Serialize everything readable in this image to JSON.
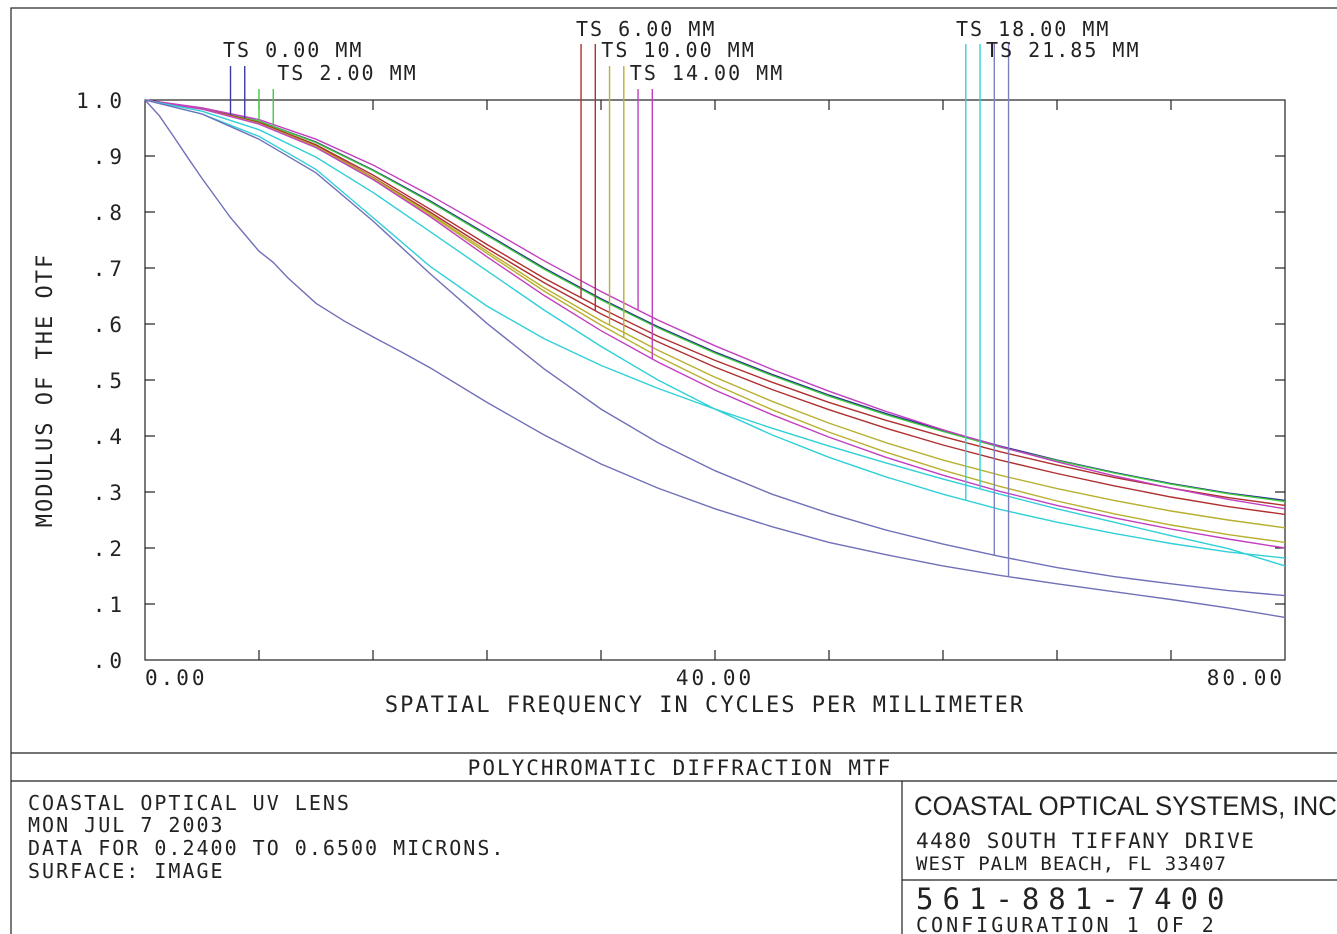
{
  "chart_data": {
    "type": "line",
    "title": "POLYCHROMATIC DIFFRACTION MTF",
    "xlabel": "SPATIAL FREQUENCY IN CYCLES PER MILLIMETER",
    "ylabel": "MODULUS OF THE OTF",
    "xlim": [
      0,
      80
    ],
    "ylim": [
      0,
      1
    ],
    "x_ticks": [
      0,
      8,
      16,
      24,
      32,
      40,
      48,
      56,
      64,
      72,
      80
    ],
    "x_tick_labels": [
      {
        "value": 0,
        "label": "0.00"
      },
      {
        "value": 40,
        "label": "40.00"
      },
      {
        "value": 80,
        "label": "80.00"
      }
    ],
    "y_ticks": [
      {
        "value": 1.0,
        "label": "1.0"
      },
      {
        "value": 0.9,
        "label": ".9"
      },
      {
        "value": 0.8,
        "label": ".8"
      },
      {
        "value": 0.7,
        "label": ".7"
      },
      {
        "value": 0.6,
        "label": ".6"
      },
      {
        "value": 0.5,
        "label": ".5"
      },
      {
        "value": 0.4,
        "label": ".4"
      },
      {
        "value": 0.3,
        "label": ".3"
      },
      {
        "value": 0.2,
        "label": ".2"
      },
      {
        "value": 0.1,
        "label": ".1"
      },
      {
        "value": 0.0,
        "label": ".0"
      }
    ],
    "grid": false,
    "field_labels": [
      {
        "text": "TS 0.00 MM",
        "color": "#3a3aa8",
        "markers_x": [
          6.0,
          7.0
        ]
      },
      {
        "text": "TS 2.00 MM",
        "color": "#3fcc3f",
        "markers_x": [
          8.0,
          9.0
        ]
      },
      {
        "text": "TS 6.00 MM",
        "color": "#b03030",
        "markers_x": [
          30.6,
          31.6
        ]
      },
      {
        "text": "TS 10.00 MM",
        "color": "#b8b030",
        "markers_x": [
          32.6,
          33.6
        ]
      },
      {
        "text": "TS 14.00 MM",
        "color": "#c040c0",
        "markers_x": [
          34.6,
          35.6
        ]
      },
      {
        "text": "TS 18.00 MM",
        "color": "#30d0d8",
        "markers_x": [
          57.6,
          58.6
        ]
      },
      {
        "text": "TS 21.85 MM",
        "color": "#8080c0",
        "markers_x": [
          59.6,
          60.6
        ]
      }
    ],
    "series": [
      {
        "color": "#2a2a90",
        "x": [
          0,
          4,
          8,
          12,
          16,
          20,
          24,
          28,
          32,
          36,
          40,
          44,
          48,
          52,
          56,
          60,
          64,
          68,
          72,
          76,
          80
        ],
        "y": [
          1.0,
          0.985,
          0.962,
          0.925,
          0.875,
          0.82,
          0.76,
          0.7,
          0.645,
          0.595,
          0.55,
          0.51,
          0.473,
          0.44,
          0.41,
          0.382,
          0.357,
          0.335,
          0.315,
          0.298,
          0.285
        ]
      },
      {
        "color": "#3fcc3f",
        "x": [
          0,
          4,
          8,
          12,
          16,
          20,
          24,
          28,
          32,
          36,
          40,
          44,
          48,
          52,
          56,
          60,
          64,
          68,
          72,
          76,
          80
        ],
        "y": [
          1.0,
          0.985,
          0.962,
          0.924,
          0.874,
          0.818,
          0.758,
          0.698,
          0.643,
          0.593,
          0.548,
          0.508,
          0.471,
          0.438,
          0.408,
          0.38,
          0.356,
          0.334,
          0.314,
          0.297,
          0.283
        ]
      },
      {
        "color": "#b03030",
        "x": [
          0,
          4,
          8,
          12,
          16,
          20,
          24,
          28,
          32,
          36,
          40,
          44,
          48,
          52,
          56,
          60,
          64,
          68,
          72,
          76,
          80
        ],
        "y": [
          1.0,
          0.985,
          0.96,
          0.92,
          0.866,
          0.805,
          0.742,
          0.682,
          0.628,
          0.578,
          0.535,
          0.496,
          0.46,
          0.428,
          0.399,
          0.372,
          0.348,
          0.326,
          0.307,
          0.29,
          0.276
        ]
      },
      {
        "color": "#b03030",
        "x": [
          0,
          4,
          8,
          12,
          16,
          20,
          24,
          28,
          32,
          36,
          40,
          44,
          48,
          52,
          56,
          60,
          64,
          68,
          72,
          76,
          80
        ],
        "y": [
          1.0,
          0.984,
          0.958,
          0.918,
          0.862,
          0.8,
          0.735,
          0.674,
          0.618,
          0.568,
          0.523,
          0.483,
          0.447,
          0.414,
          0.384,
          0.357,
          0.333,
          0.311,
          0.291,
          0.274,
          0.26
        ]
      },
      {
        "color": "#b8b030",
        "x": [
          0,
          4,
          8,
          12,
          16,
          20,
          24,
          28,
          32,
          36,
          40,
          44,
          48,
          52,
          56,
          60,
          64,
          68,
          72,
          76,
          80
        ],
        "y": [
          1.0,
          0.984,
          0.958,
          0.917,
          0.861,
          0.797,
          0.73,
          0.665,
          0.606,
          0.553,
          0.505,
          0.462,
          0.423,
          0.388,
          0.357,
          0.33,
          0.306,
          0.285,
          0.266,
          0.25,
          0.236
        ]
      },
      {
        "color": "#b8b030",
        "x": [
          0,
          4,
          8,
          12,
          16,
          20,
          24,
          28,
          32,
          36,
          40,
          44,
          48,
          52,
          56,
          60,
          64,
          68,
          72,
          76,
          80
        ],
        "y": [
          1.0,
          0.984,
          0.958,
          0.917,
          0.86,
          0.795,
          0.726,
          0.659,
          0.598,
          0.542,
          0.492,
          0.447,
          0.407,
          0.371,
          0.339,
          0.31,
          0.284,
          0.261,
          0.241,
          0.224,
          0.21
        ]
      },
      {
        "color": "#c040c0",
        "x": [
          0,
          4,
          8,
          12,
          16,
          20,
          24,
          28,
          32,
          36,
          40,
          44,
          48,
          52,
          56,
          60,
          64,
          68,
          72,
          76,
          80
        ],
        "y": [
          1.0,
          0.986,
          0.965,
          0.93,
          0.884,
          0.83,
          0.772,
          0.713,
          0.658,
          0.607,
          0.561,
          0.519,
          0.48,
          0.444,
          0.411,
          0.381,
          0.354,
          0.329,
          0.307,
          0.287,
          0.27
        ]
      },
      {
        "color": "#c040c0",
        "x": [
          0,
          4,
          8,
          12,
          16,
          20,
          24,
          28,
          32,
          36,
          40,
          44,
          48,
          52,
          56,
          60,
          64,
          68,
          72,
          76,
          80
        ],
        "y": [
          1.0,
          0.984,
          0.957,
          0.915,
          0.858,
          0.792,
          0.72,
          0.651,
          0.588,
          0.532,
          0.482,
          0.438,
          0.398,
          0.362,
          0.33,
          0.301,
          0.276,
          0.254,
          0.234,
          0.216,
          0.2
        ]
      },
      {
        "color": "#30d0d8",
        "x": [
          0,
          4,
          8,
          12,
          16,
          20,
          24,
          28,
          32,
          36,
          40,
          44,
          48,
          52,
          56,
          60,
          64,
          68,
          72,
          76,
          80
        ],
        "y": [
          1.0,
          0.98,
          0.947,
          0.898,
          0.835,
          0.765,
          0.695,
          0.625,
          0.56,
          0.5,
          0.448,
          0.402,
          0.362,
          0.327,
          0.296,
          0.269,
          0.246,
          0.226,
          0.208,
          0.193,
          0.182
        ]
      },
      {
        "color": "#30d0d8",
        "x": [
          0,
          4,
          8,
          12,
          16,
          20,
          24,
          28,
          32,
          36,
          40,
          44,
          48,
          52,
          56,
          60,
          64,
          68,
          72,
          76,
          80
        ],
        "y": [
          1.0,
          0.975,
          0.935,
          0.876,
          0.79,
          0.703,
          0.632,
          0.574,
          0.526,
          0.485,
          0.448,
          0.414,
          0.382,
          0.352,
          0.323,
          0.296,
          0.27,
          0.246,
          0.222,
          0.199,
          0.168
        ]
      },
      {
        "color": "#7070b8",
        "x": [
          0,
          4,
          8,
          12,
          16,
          20,
          24,
          28,
          32,
          36,
          40,
          44,
          48,
          52,
          56,
          60,
          64,
          68,
          72,
          76,
          80
        ],
        "y": [
          1.0,
          0.975,
          0.93,
          0.87,
          0.784,
          0.69,
          0.601,
          0.52,
          0.448,
          0.388,
          0.338,
          0.296,
          0.262,
          0.232,
          0.207,
          0.185,
          0.165,
          0.149,
          0.136,
          0.124,
          0.115
        ]
      },
      {
        "color": "#7070b8",
        "x": [
          0,
          1,
          2,
          3,
          4,
          6,
          8,
          9,
          10,
          12,
          14,
          16,
          18,
          20,
          24,
          28,
          32,
          36,
          40,
          44,
          48,
          52,
          56,
          60,
          64,
          68,
          72,
          76,
          80
        ],
        "y": [
          1.0,
          0.972,
          0.935,
          0.897,
          0.86,
          0.79,
          0.73,
          0.71,
          0.683,
          0.637,
          0.605,
          0.577,
          0.55,
          0.522,
          0.46,
          0.402,
          0.35,
          0.307,
          0.27,
          0.238,
          0.21,
          0.188,
          0.168,
          0.151,
          0.136,
          0.122,
          0.108,
          0.093,
          0.076
        ]
      }
    ]
  },
  "info": {
    "left_lines": [
      "COASTAL OPTICAL UV LENS",
      "MON JUL 7 2003",
      "DATA FOR 0.2400 TO 0.6500 MICRONS.",
      "SURFACE: IMAGE"
    ],
    "company": "COASTAL OPTICAL SYSTEMS, INC.",
    "address1": "4480 SOUTH TIFFANY DRIVE",
    "address2": "WEST PALM BEACH, FL  33407",
    "phone": "561-881-7400",
    "configuration": "CONFIGURATION 1 OF 2"
  }
}
